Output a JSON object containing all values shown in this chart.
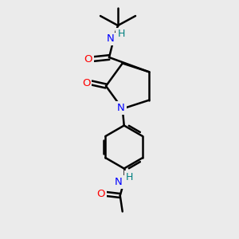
{
  "bg_color": "#ebebeb",
  "atom_colors": {
    "C": "#000000",
    "N": "#0000ff",
    "O": "#ff0000",
    "H": "#008080"
  },
  "bond_color": "#000000",
  "bond_width": 1.8,
  "figsize": [
    3.0,
    3.0
  ],
  "dpi": 100
}
